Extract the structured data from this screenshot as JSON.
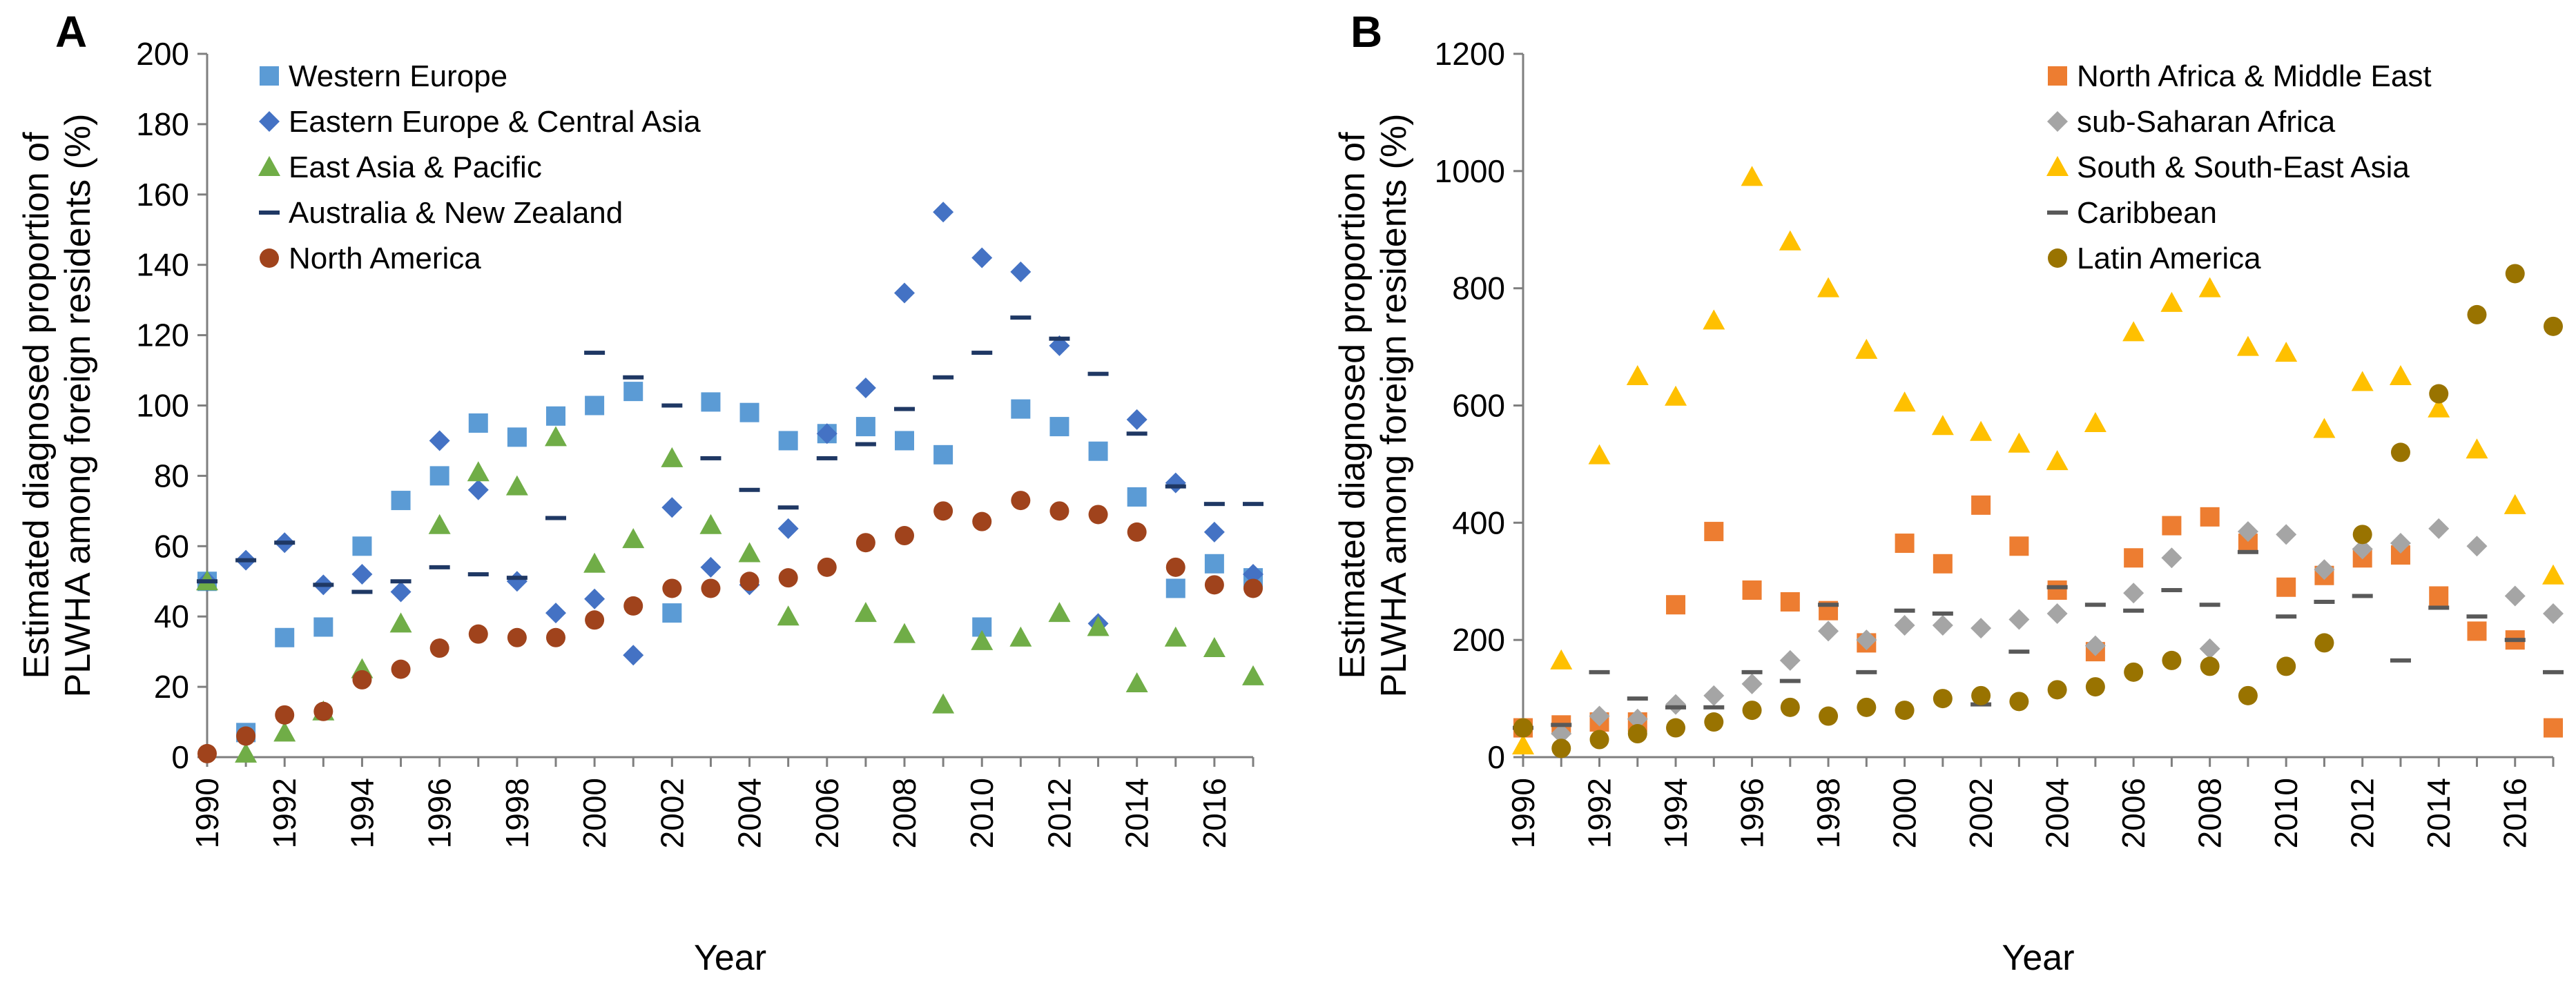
{
  "chart_data": [
    {
      "panel_label": "A",
      "type": "scatter",
      "xlabel": "Year",
      "ylabel": [
        "Estimated diagnosed proportion of",
        "PLWHA among foreign residents (%)"
      ],
      "xlim": [
        1990,
        2017
      ],
      "ylim": [
        0,
        200
      ],
      "x_ticks": [
        "1990",
        "1992",
        "1994",
        "1996",
        "1998",
        "2000",
        "2002",
        "2004",
        "2006",
        "2008",
        "2010",
        "2012",
        "2014",
        "2016"
      ],
      "y_ticks": [
        "0",
        "20",
        "40",
        "60",
        "80",
        "100",
        "120",
        "140",
        "160",
        "180",
        "200"
      ],
      "legend_position": "top-left",
      "x": [
        1990,
        1991,
        1992,
        1993,
        1994,
        1995,
        1996,
        1997,
        1998,
        1999,
        2000,
        2001,
        2002,
        2003,
        2004,
        2005,
        2006,
        2007,
        2008,
        2009,
        2010,
        2011,
        2012,
        2013,
        2014,
        2015,
        2016,
        2017
      ],
      "series": [
        {
          "name": "Western Europe",
          "marker": "square",
          "color": "#5b9bd5",
          "values": [
            50,
            7,
            34,
            37,
            60,
            73,
            80,
            95,
            91,
            97,
            100,
            104,
            41,
            101,
            98,
            90,
            92,
            94,
            90,
            86,
            37,
            99,
            94,
            87,
            74,
            48,
            55,
            51
          ]
        },
        {
          "name": "Eastern Europe & Central Asia",
          "marker": "diamond",
          "color": "#4472c4",
          "values": [
            50,
            56,
            61,
            49,
            52,
            47,
            90,
            76,
            50,
            41,
            45,
            29,
            71,
            54,
            49,
            65,
            92,
            105,
            132,
            155,
            142,
            138,
            117,
            38,
            96,
            78,
            64,
            52
          ]
        },
        {
          "name": "East Asia & Pacific",
          "marker": "triangle",
          "color": "#70ad47",
          "values": [
            50,
            1,
            7,
            13,
            25,
            38,
            66,
            81,
            77,
            91,
            55,
            62,
            85,
            66,
            58,
            40,
            null,
            41,
            35,
            15,
            33,
            34,
            41,
            37,
            21,
            34,
            31,
            23
          ]
        },
        {
          "name": "Australia & New Zealand",
          "marker": "dash",
          "color": "#1f3864",
          "values": [
            50,
            56,
            61,
            49,
            47,
            50,
            54,
            52,
            51,
            68,
            115,
            108,
            100,
            85,
            76,
            71,
            85,
            89,
            99,
            108,
            115,
            125,
            119,
            109,
            92,
            77,
            72,
            72
          ]
        },
        {
          "name": "North America",
          "marker": "circle",
          "color": "#a0431c",
          "values": [
            1,
            6,
            12,
            13,
            22,
            25,
            31,
            35,
            34,
            34,
            39,
            43,
            48,
            48,
            50,
            51,
            54,
            61,
            63,
            70,
            67,
            73,
            70,
            69,
            64,
            54,
            49,
            48
          ]
        }
      ]
    },
    {
      "panel_label": "B",
      "type": "scatter",
      "xlabel": "Year",
      "ylabel": [
        "Estimated diagnosed proportion of",
        "PLWHA among foreign residents (%)"
      ],
      "xlim": [
        1990,
        2017
      ],
      "ylim": [
        0,
        1200
      ],
      "x_ticks": [
        "1990",
        "1992",
        "1994",
        "1996",
        "1998",
        "2000",
        "2002",
        "2004",
        "2006",
        "2008",
        "2010",
        "2012",
        "2014",
        "2016"
      ],
      "y_ticks": [
        "0",
        "200",
        "400",
        "600",
        "800",
        "1000",
        "1200"
      ],
      "legend_position": "top-right",
      "x": [
        1990,
        1991,
        1992,
        1993,
        1994,
        1995,
        1996,
        1997,
        1998,
        1999,
        2000,
        2001,
        2002,
        2003,
        2004,
        2005,
        2006,
        2007,
        2008,
        2009,
        2010,
        2011,
        2012,
        2013,
        2014,
        2015,
        2016,
        2017
      ],
      "series": [
        {
          "name": "North Africa & Middle East",
          "marker": "square",
          "color": "#ed7d31",
          "values": [
            50,
            55,
            60,
            60,
            260,
            385,
            285,
            265,
            250,
            195,
            365,
            330,
            430,
            360,
            285,
            180,
            340,
            395,
            410,
            365,
            290,
            310,
            340,
            345,
            275,
            215,
            200,
            50
          ]
        },
        {
          "name": "sub-Saharan Africa",
          "marker": "diamond",
          "color": "#a5a5a5",
          "values": [
            50,
            40,
            70,
            65,
            90,
            105,
            125,
            165,
            215,
            200,
            225,
            225,
            220,
            235,
            245,
            190,
            280,
            340,
            185,
            385,
            380,
            320,
            355,
            365,
            390,
            360,
            275,
            245
          ]
        },
        {
          "name": "South & South-East Asia",
          "marker": "triangle",
          "color": "#ffc000",
          "values": [
            20,
            165,
            515,
            650,
            615,
            745,
            990,
            880,
            800,
            695,
            605,
            565,
            555,
            535,
            505,
            570,
            725,
            775,
            800,
            700,
            690,
            560,
            640,
            650,
            595,
            525,
            430,
            310
          ]
        },
        {
          "name": "Caribbean",
          "marker": "dash",
          "color": "#595959",
          "values": [
            50,
            55,
            145,
            100,
            85,
            85,
            145,
            130,
            260,
            145,
            250,
            245,
            90,
            180,
            290,
            260,
            250,
            285,
            260,
            350,
            240,
            265,
            275,
            165,
            255,
            240,
            200,
            145
          ]
        },
        {
          "name": "Latin America",
          "marker": "circle",
          "color": "#997300",
          "values": [
            50,
            15,
            30,
            40,
            50,
            60,
            80,
            85,
            70,
            85,
            80,
            100,
            105,
            95,
            115,
            120,
            145,
            165,
            155,
            105,
            155,
            195,
            380,
            520,
            620,
            755,
            825,
            735
          ]
        }
      ]
    }
  ]
}
